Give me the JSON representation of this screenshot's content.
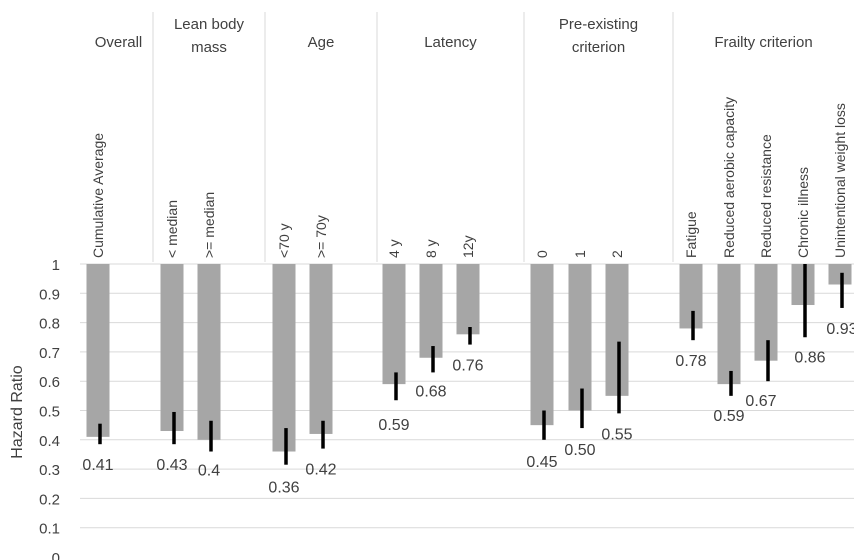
{
  "chart_data": {
    "type": "bar",
    "ylabel": "Hazard Ratio",
    "ylim": [
      0,
      1
    ],
    "yticks": [
      "0",
      "0.1",
      "0.2",
      "0.3",
      "0.4",
      "0.5",
      "0.6",
      "0.7",
      "0.8",
      "0.9",
      "1"
    ],
    "grid": true,
    "bar_color": "#a6a6a6",
    "error_color": "#000000",
    "groups": [
      {
        "label_lines": [
          "Overall"
        ],
        "categories": [
          "Cumulative Average"
        ]
      },
      {
        "label_lines": [
          "Lean body",
          "mass"
        ],
        "categories": [
          "< median",
          ">= median"
        ]
      },
      {
        "label_lines": [
          "Age"
        ],
        "categories": [
          "<70 y",
          ">= 70y"
        ]
      },
      {
        "label_lines": [
          "Latency"
        ],
        "categories": [
          "4 y",
          "8 y",
          "12y"
        ]
      },
      {
        "label_lines": [
          "Pre-existing",
          "criterion"
        ],
        "categories": [
          "0",
          "1",
          "2"
        ]
      },
      {
        "label_lines": [
          "Frailty criterion"
        ],
        "categories": [
          "Fatigue",
          "Reduced aerobic capacity",
          "Reduced resistance",
          "Chronic illness",
          "Unintentional weight loss"
        ]
      }
    ],
    "bars": [
      {
        "category": "Cumulative Average",
        "value": 0.41,
        "label": "0.41",
        "err_low": 0.385,
        "err_high": 0.455
      },
      {
        "category": "< median",
        "value": 0.43,
        "label": "0.43",
        "err_low": 0.385,
        "err_high": 0.495
      },
      {
        "category": ">= median",
        "value": 0.4,
        "label": "0.4",
        "err_low": 0.36,
        "err_high": 0.465
      },
      {
        "category": "<70 y",
        "value": 0.36,
        "label": "0.36",
        "err_low": 0.315,
        "err_high": 0.44
      },
      {
        "category": ">= 70y",
        "value": 0.42,
        "label": "0.42",
        "err_low": 0.37,
        "err_high": 0.465
      },
      {
        "category": "4 y",
        "value": 0.59,
        "label": "0.59",
        "err_low": 0.535,
        "err_high": 0.63
      },
      {
        "category": "8 y",
        "value": 0.68,
        "label": "0.68",
        "err_low": 0.63,
        "err_high": 0.72
      },
      {
        "category": "12y",
        "value": 0.76,
        "label": "0.76",
        "err_low": 0.725,
        "err_high": 0.785
      },
      {
        "category": "0",
        "value": 0.45,
        "label": "0.45",
        "err_low": 0.4,
        "err_high": 0.5
      },
      {
        "category": "1",
        "value": 0.5,
        "label": "0.50",
        "err_low": 0.44,
        "err_high": 0.575
      },
      {
        "category": "2",
        "value": 0.55,
        "label": "0.55",
        "err_low": 0.49,
        "err_high": 0.735
      },
      {
        "category": "Fatigue",
        "value": 0.78,
        "label": "0.78",
        "err_low": 0.74,
        "err_high": 0.84
      },
      {
        "category": "Reduced aerobic capacity",
        "value": 0.59,
        "label": "0.59",
        "err_low": 0.55,
        "err_high": 0.635
      },
      {
        "category": "Reduced resistance",
        "value": 0.67,
        "label": "0.67",
        "err_low": 0.6,
        "err_high": 0.74
      },
      {
        "category": "Chronic illness",
        "value": 0.86,
        "label": "0.86",
        "err_low": 0.75,
        "err_high": 1.0
      },
      {
        "category": "Unintentional weight loss",
        "value": 0.93,
        "label": "0.93",
        "err_low": 0.85,
        "err_high": 0.97
      }
    ]
  }
}
